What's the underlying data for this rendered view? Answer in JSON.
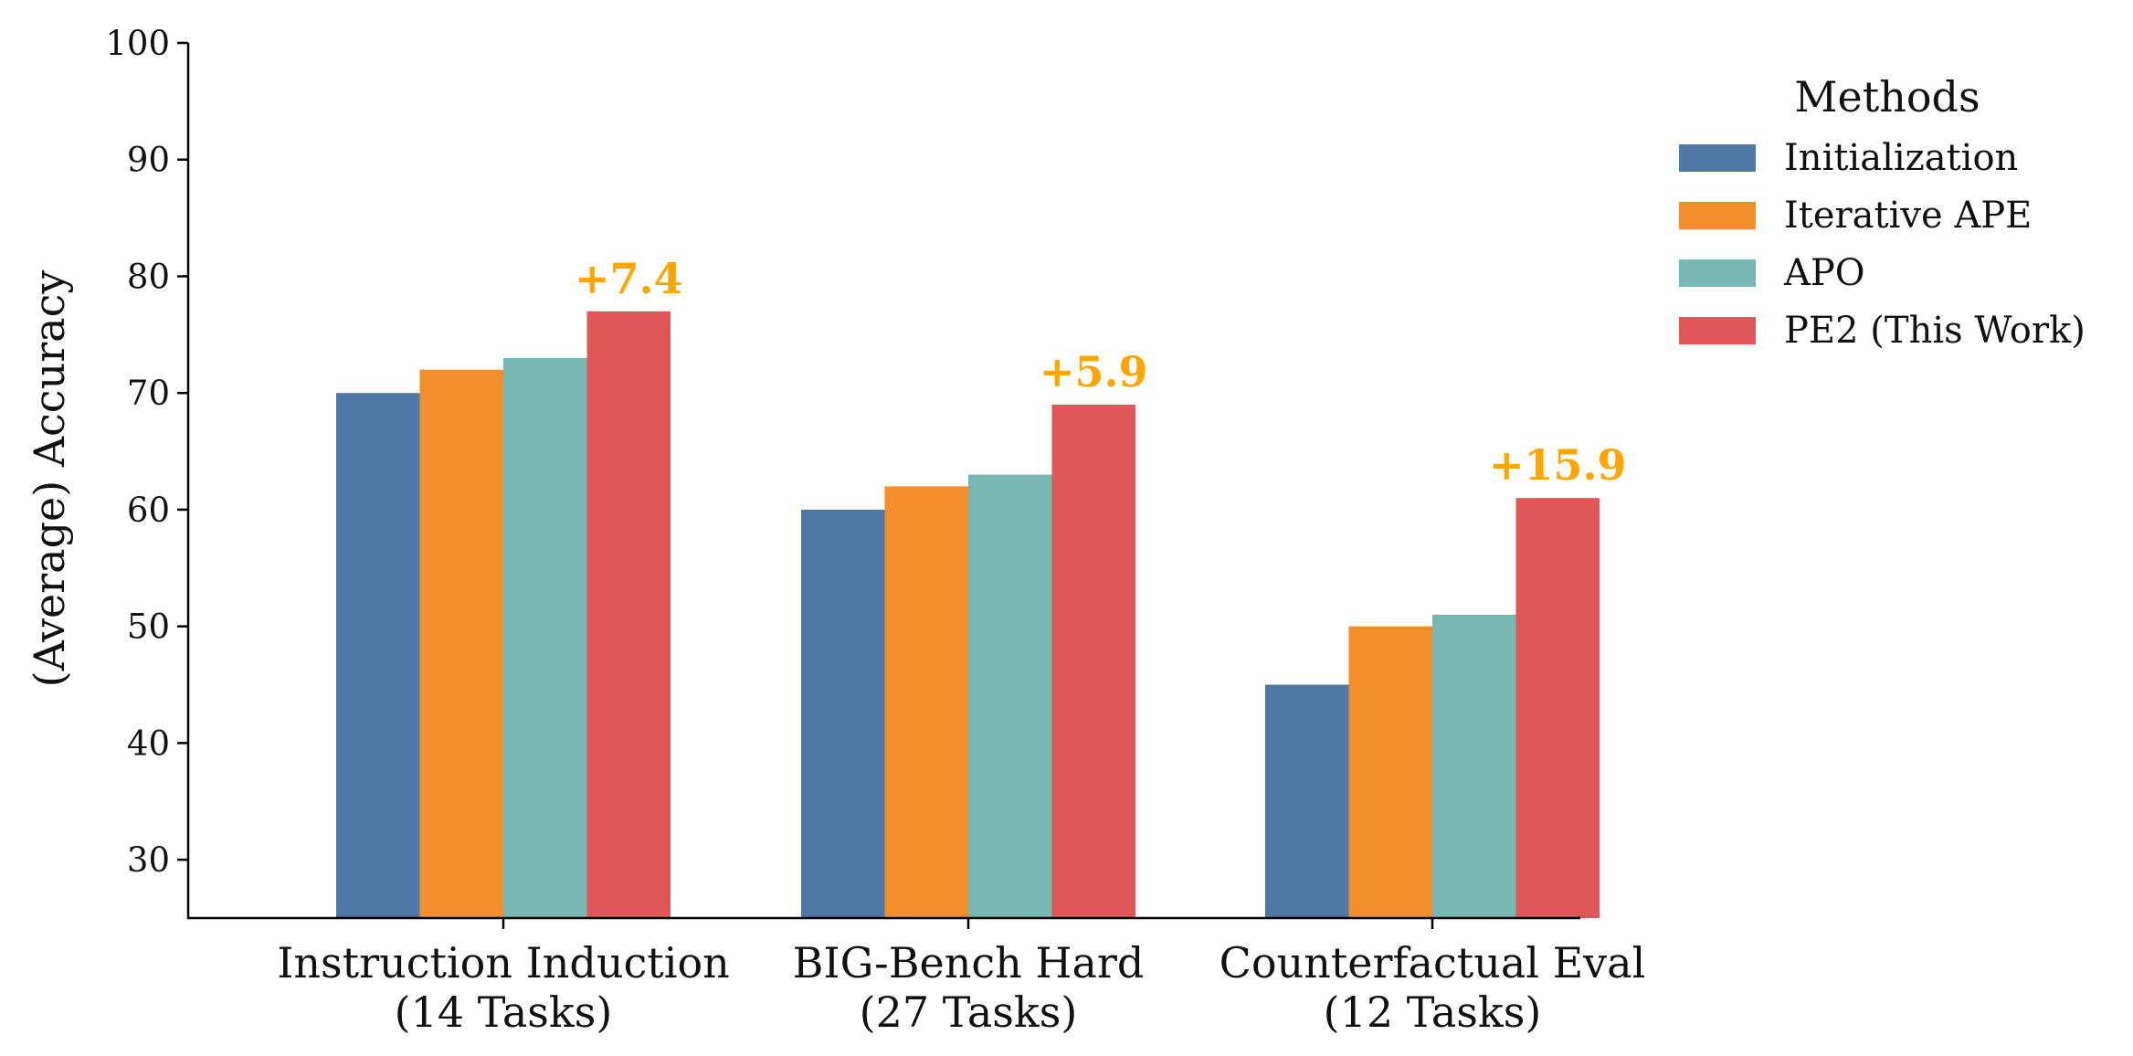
{
  "chart_data": {
    "type": "bar",
    "categories": [
      [
        "Instruction Induction",
        "(14 Tasks)"
      ],
      [
        "BIG-Bench Hard",
        "(27 Tasks)"
      ],
      [
        "Counterfactual Eval",
        "(12 Tasks)"
      ]
    ],
    "series": [
      {
        "name": "Initialization",
        "color": "#4e79a7",
        "values": [
          70,
          60,
          45
        ]
      },
      {
        "name": "Iterative APE",
        "color": "#f28e2b",
        "values": [
          72,
          62,
          50
        ]
      },
      {
        "name": "APO",
        "color": "#76b7b2",
        "values": [
          73,
          63,
          51
        ]
      },
      {
        "name": "PE2 (This Work)",
        "color": "#e15759",
        "values": [
          77,
          69,
          61
        ]
      }
    ],
    "annotations": [
      "+7.4",
      "+5.9",
      "+15.9"
    ],
    "annotation_color": "#ffa500",
    "ylabel": "(Average) Accuracy",
    "ylim": [
      25,
      100
    ],
    "yticks": [
      30,
      40,
      50,
      60,
      70,
      80,
      90,
      100
    ],
    "legend": {
      "title": "Methods",
      "placement": "outside-top-right"
    },
    "grid": false
  }
}
